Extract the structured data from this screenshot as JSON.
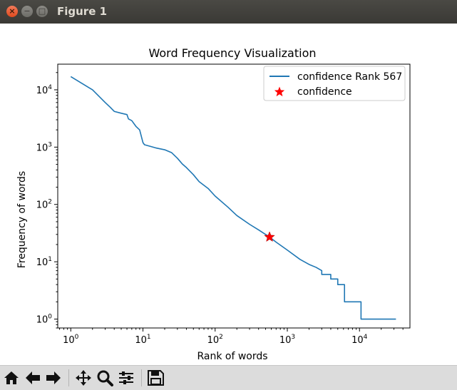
{
  "window": {
    "title": "Figure 1",
    "close_glyph": "×",
    "min_glyph": "−",
    "max_glyph": "□"
  },
  "toolbar": {
    "buttons": [
      {
        "name": "home-icon"
      },
      {
        "name": "back-icon"
      },
      {
        "name": "forward-icon"
      },
      {
        "name": "pan-icon"
      },
      {
        "name": "zoom-icon"
      },
      {
        "name": "configure-subplots-icon"
      },
      {
        "name": "save-icon"
      }
    ]
  },
  "chart_data": {
    "type": "line",
    "title": "Word Frequency Visualization",
    "xlabel": "Rank of words",
    "ylabel": "Frequency of words",
    "xscale": "log",
    "yscale": "log",
    "xlim": [
      0.66,
      50000
    ],
    "ylim": [
      0.7,
      28000
    ],
    "xticks": [
      1,
      10,
      100,
      1000,
      10000
    ],
    "xtick_labels": [
      "10^0",
      "10^1",
      "10^2",
      "10^3",
      "10^4"
    ],
    "yticks": [
      1,
      10,
      100,
      1000,
      10000
    ],
    "ytick_labels": [
      "10^0",
      "10^1",
      "10^2",
      "10^3",
      "10^4"
    ],
    "grid": false,
    "legend_position": "upper right",
    "series": [
      {
        "name": "confidence Rank 567",
        "style": "line",
        "color": "#1f77b4",
        "x": [
          1,
          2,
          3,
          3.5,
          4,
          5,
          6,
          6.3,
          7,
          8,
          9,
          10,
          10.5,
          12,
          15,
          20,
          25,
          30,
          35,
          40,
          50,
          60,
          80,
          100,
          150,
          200,
          300,
          400,
          567,
          700,
          1000,
          1500,
          2000,
          2500,
          3000,
          3000,
          4000,
          4000,
          5000,
          5000,
          6200,
          6200,
          10500,
          10500,
          32000
        ],
        "y": [
          17000,
          10000,
          6000,
          5000,
          4200,
          3900,
          3700,
          3100,
          2900,
          2300,
          2000,
          1200,
          1100,
          1050,
          970,
          900,
          800,
          640,
          510,
          440,
          330,
          250,
          190,
          140,
          90,
          64,
          45,
          36,
          27,
          22,
          16,
          11,
          9,
          8,
          7,
          6,
          6,
          5,
          5,
          4,
          4,
          2,
          2,
          1,
          1
        ]
      },
      {
        "name": "confidence",
        "style": "marker",
        "marker": "star",
        "color": "#ff0000",
        "x": [
          567
        ],
        "y": [
          27
        ]
      }
    ]
  }
}
